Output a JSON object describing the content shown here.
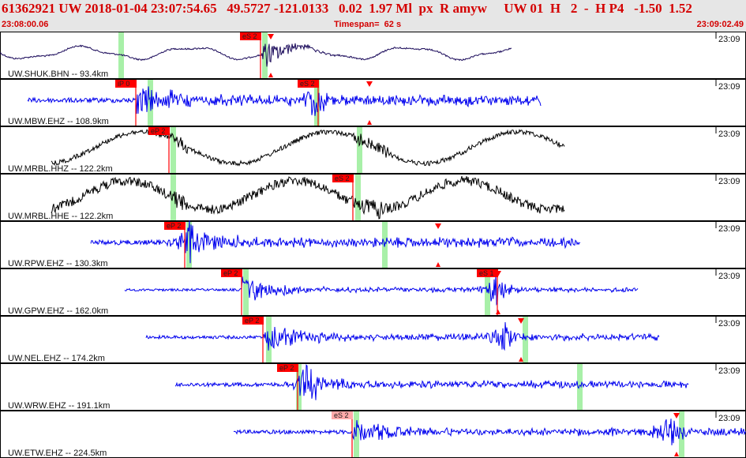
{
  "header": {
    "title": "61362921 UW 2018-01-04 23:07:54.65   49.5727 -121.0133   0.02  1.97 Ml  px  R amyw     UW 01  H   2  -  H P4   -1.50  1.52",
    "start_time": "23:08:00.06",
    "timespan": "Timespan=  62 s",
    "end_time": "23:09:02.49"
  },
  "colors": {
    "header_bg": "#e6e6e6",
    "header_text": "#d40000",
    "pick": "#ff0000",
    "pick_light": "#ffaaaa",
    "window": "#a8f0a8",
    "trace_blue": "#0000ee",
    "trace_dark": "#1a0a5a",
    "trace_black": "#000000"
  },
  "traces": [
    {
      "label": "UW.SHUK.BHN -- 93.4km",
      "time_tick": "23:09",
      "color": "#1a0a5a",
      "style": "smooth",
      "start": 0,
      "end": 648,
      "onset": 330,
      "amp": 10,
      "noise": 2,
      "greens": [
        150,
        332
      ],
      "picks": [
        {
          "text": "eS 2",
          "x": 330,
          "light": false
        }
      ],
      "arrows": [
        343
      ]
    },
    {
      "label": "UW.MBW.EHZ -- 108.9km",
      "time_tick": "23:09",
      "color": "#0000ee",
      "style": "noisy",
      "start": 35,
      "end": 685,
      "onset": 172,
      "amp": 5,
      "noise": 3,
      "burst": 400,
      "greens": [
        187,
        398
      ],
      "picks": [
        {
          "text": "iP 0",
          "x": 172,
          "light": false
        },
        {
          "text": "eS 2",
          "x": 403,
          "light": false
        }
      ],
      "arrows": [
        468
      ]
    },
    {
      "label": "UW.MRBL.HHZ -- 122.2km",
      "time_tick": "23:09",
      "color": "#000000",
      "style": "wave",
      "start": 65,
      "end": 715,
      "onset": 214,
      "amp": 20,
      "noise": 2,
      "greens": [
        216,
        452
      ],
      "picks": [
        {
          "text": "eP 2",
          "x": 214,
          "light": false
        }
      ],
      "arrows": []
    },
    {
      "label": "UW.MRBL.HHE -- 122.2km",
      "time_tick": "23:09",
      "color": "#000000",
      "style": "wave2",
      "start": 65,
      "end": 715,
      "onset": 214,
      "amp": 18,
      "noise": 4,
      "greens": [
        216,
        450
      ],
      "picks": [
        {
          "text": "eS 2",
          "x": 447,
          "light": false
        }
      ],
      "arrows": []
    },
    {
      "label": "UW.RPW.EHZ -- 130.3km",
      "time_tick": "23:09",
      "color": "#0000ee",
      "style": "noisy",
      "start": 115,
      "end": 735,
      "onset": 234,
      "amp": 4,
      "noise": 3,
      "burst": 240,
      "greens": [
        236,
        484
      ],
      "picks": [
        {
          "text": "eP 2",
          "x": 234,
          "light": false
        }
      ],
      "arrows": [
        555
      ]
    },
    {
      "label": "UW.GPW.EHZ -- 162.0km",
      "time_tick": "23:09",
      "color": "#0000ee",
      "style": "noisy",
      "start": 158,
      "end": 808,
      "onset": 306,
      "amp": 2,
      "noise": 1.5,
      "burst": 628,
      "greens": [
        308,
        614
      ],
      "picks": [
        {
          "text": "eP 2",
          "x": 306,
          "light": false
        },
        {
          "text": "eS 1",
          "x": 630,
          "light": false
        }
      ],
      "arrows": [
        631
      ]
    },
    {
      "label": "UW.NEL.EHZ -- 174.2km",
      "time_tick": "23:09",
      "color": "#0000ee",
      "style": "noisy",
      "start": 185,
      "end": 835,
      "onset": 333,
      "amp": 3,
      "noise": 2,
      "burst": 640,
      "greens": [
        337,
        662
      ],
      "picks": [
        {
          "text": "eP 2",
          "x": 333,
          "light": false
        }
      ],
      "arrows": [
        660
      ]
    },
    {
      "label": "UW.WRW.EHZ -- 191.1km",
      "time_tick": "23:09",
      "color": "#0000ee",
      "style": "noisy",
      "start": 222,
      "end": 872,
      "onset": 377,
      "amp": 3,
      "noise": 2.5,
      "burst": 390,
      "greens": [
        375,
        731
      ],
      "picks": [
        {
          "text": "eP 2",
          "x": 377,
          "light": false
        }
      ],
      "arrows": []
    },
    {
      "label": "UW.ETW.EHZ -- 224.5km",
      "time_tick": "23:09",
      "color": "#0000ee",
      "style": "noisy",
      "start": 296,
      "end": 945,
      "onset": 446,
      "amp": 3,
      "noise": 2.5,
      "burst": 850,
      "greens": [
        448,
        860
      ],
      "picks": [
        {
          "text": "eS 2",
          "x": 446,
          "light": true
        }
      ],
      "arrows": [
        857
      ]
    }
  ]
}
